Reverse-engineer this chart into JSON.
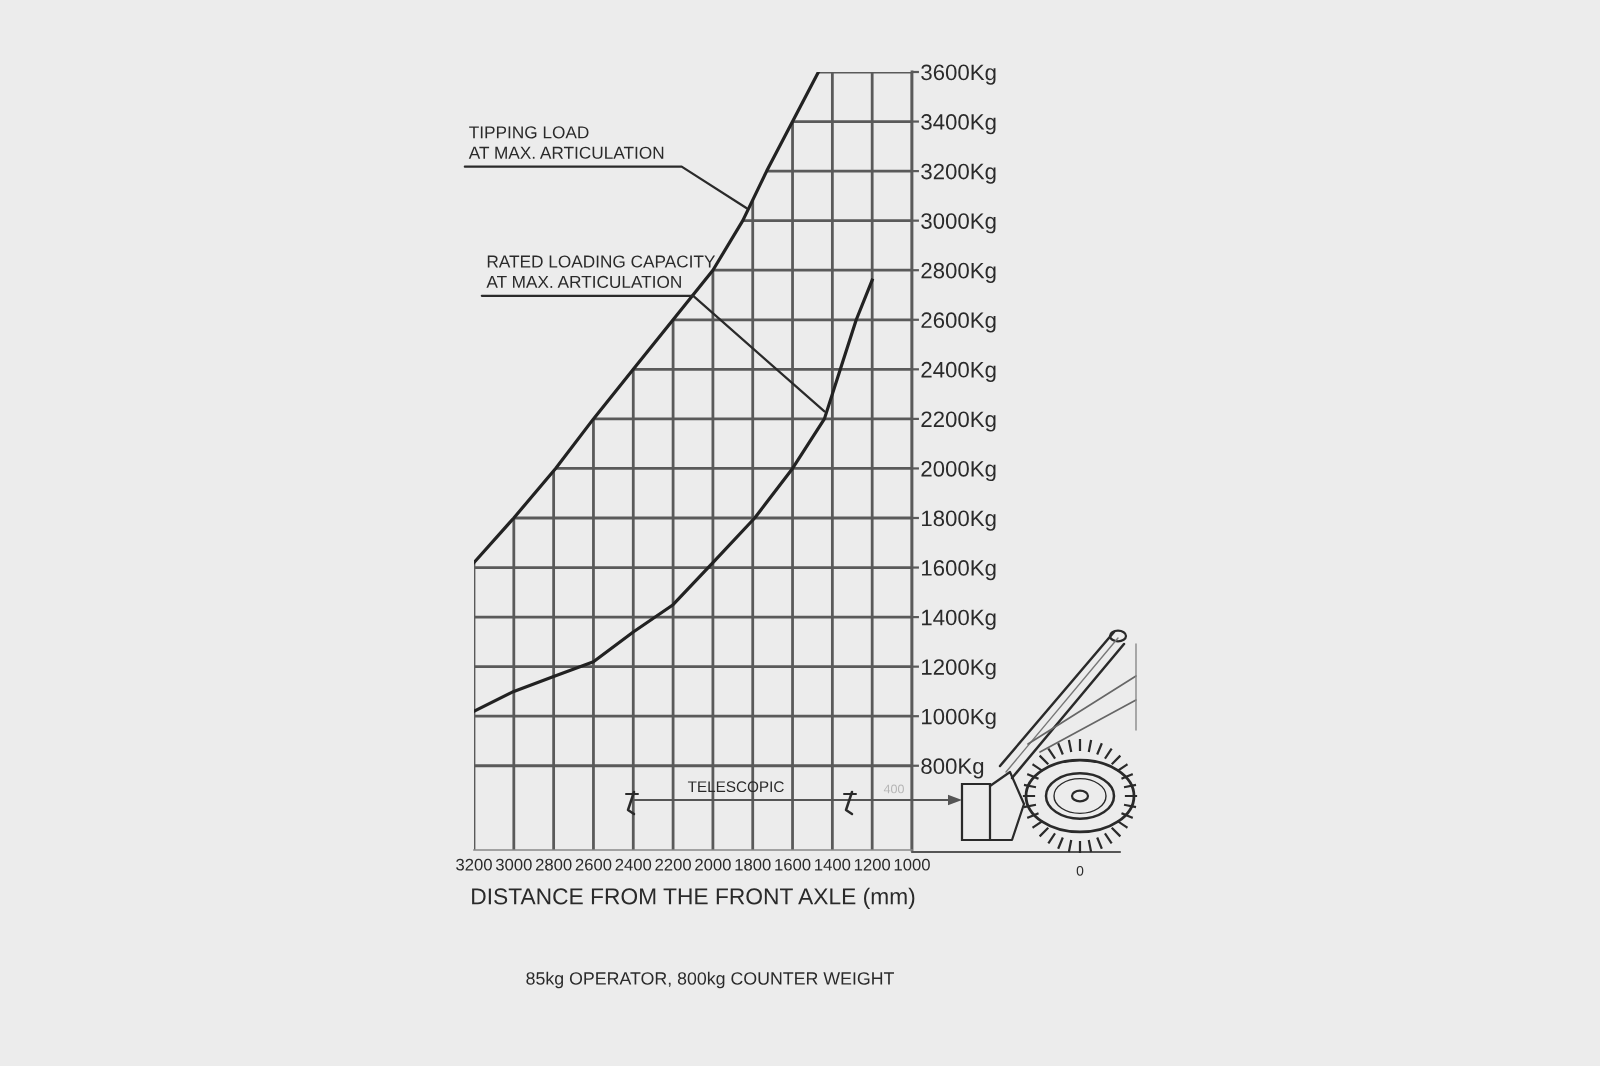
{
  "chart_data": {
    "type": "line",
    "xlabel": "DISTANCE FROM THE FRONT AXLE (mm)",
    "series": [
      {
        "color": "#222222",
        "x": [
          3200,
          3000,
          2790,
          2600,
          2400,
          2200,
          2000,
          1850,
          1730,
          1600,
          1470
        ],
        "values": [
          1620,
          1800,
          2000,
          2200,
          2400,
          2600,
          2800,
          3000,
          3200,
          3400,
          3600
        ]
      },
      {
        "color": "#222222",
        "x": [
          3200,
          3000,
          2800,
          2600,
          2400,
          2200,
          2000,
          1790,
          1600,
          1440,
          1360,
          1280,
          1200
        ],
        "values": [
          1020,
          1100,
          1160,
          1220,
          1340,
          1450,
          1620,
          1800,
          2000,
          2200,
          2400,
          2600,
          2760
        ]
      }
    ],
    "xlim": [
      3200,
      1000
    ],
    "ylim": [
      460,
      3600
    ],
    "xticks": [
      3200,
      3000,
      2800,
      2600,
      2400,
      2200,
      2000,
      1800,
      1600,
      1400,
      1200,
      1000
    ],
    "yticks": [
      {
        "value": 800,
        "label": "800Kg"
      },
      {
        "value": 1000,
        "label": "1000Kg"
      },
      {
        "value": 1200,
        "label": "1200Kg"
      },
      {
        "value": 1400,
        "label": "1400Kg"
      },
      {
        "value": 1600,
        "label": "1600Kg"
      },
      {
        "value": 1800,
        "label": "1800Kg"
      },
      {
        "value": 2000,
        "label": "2000Kg"
      },
      {
        "value": 2200,
        "label": "2200Kg"
      },
      {
        "value": 2400,
        "label": "2400Kg"
      },
      {
        "value": 2600,
        "label": "2600Kg"
      },
      {
        "value": 2800,
        "label": "2800Kg"
      },
      {
        "value": 3000,
        "label": "3000Kg"
      },
      {
        "value": 3200,
        "label": "3200Kg"
      },
      {
        "value": 3400,
        "label": "3400Kg"
      },
      {
        "value": 3600,
        "label": "3600Kg"
      }
    ],
    "grid": true,
    "annotations": [
      {
        "text": "TIPPING LOAD\nAT MAX. ARTICULATION",
        "x": 1830,
        "y": 3050
      },
      {
        "text": "RATED LOADING CAPACITY\nAT MAX. ARTICULATION",
        "x": 1440,
        "y": 2230
      },
      "TELESCOPIC",
      "400",
      "0",
      "85kg OPERATOR, 800kg COUNTER WEIGHT"
    ]
  }
}
